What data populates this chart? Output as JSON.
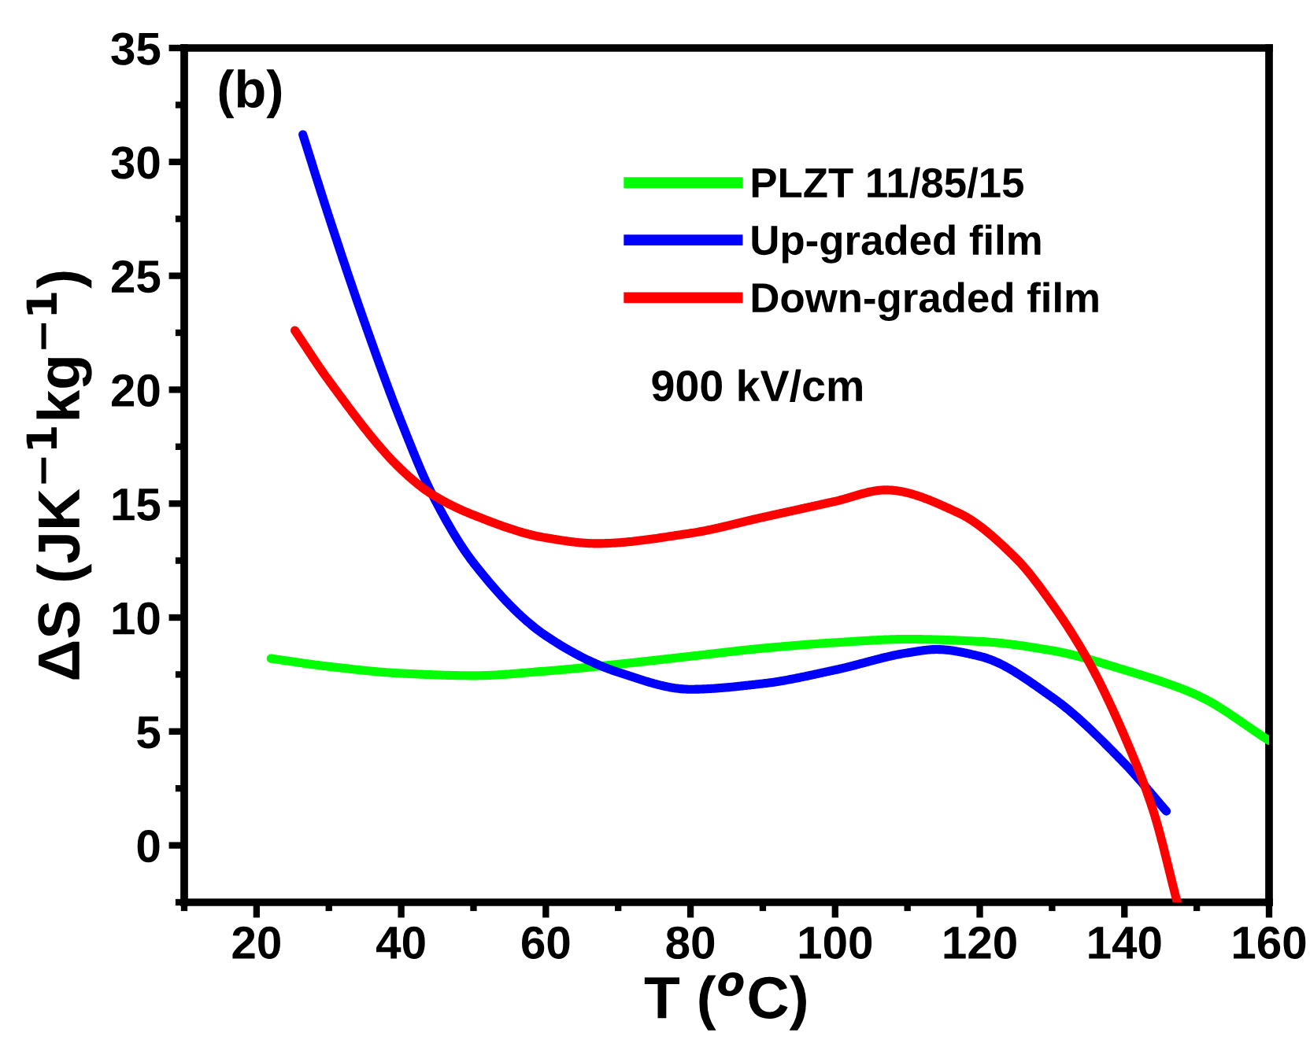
{
  "chart_data": {
    "type": "line",
    "xlabel": "T ($^{o}$C)",
    "ylabel": "ΔS (JK$^{−1}$kg$^{−1}$)",
    "xlim": [
      10,
      160
    ],
    "ylim": [
      -2.5,
      35
    ],
    "xticks": [
      {
        "value": 10,
        "label": null
      },
      20,
      {
        "value": 30,
        "label": null
      },
      40,
      {
        "value": 50,
        "label": null
      },
      60,
      {
        "value": 70,
        "label": null
      },
      80,
      {
        "value": 90,
        "label": null
      },
      100,
      {
        "value": 110,
        "label": null
      },
      120,
      {
        "value": 130,
        "label": null
      },
      140,
      {
        "value": 150,
        "label": null
      },
      160
    ],
    "yticks": [
      {
        "value": -2.5,
        "label": null
      },
      0,
      {
        "value": 2.5,
        "label": null
      },
      5,
      {
        "value": 7.5,
        "label": null
      },
      10,
      {
        "value": 12.5,
        "label": null
      },
      15,
      {
        "value": 17.5,
        "label": null
      },
      20,
      {
        "value": 22.5,
        "label": null
      },
      25,
      {
        "value": 27.5,
        "label": null
      },
      30,
      {
        "value": 32.5,
        "label": null
      },
      35
    ],
    "grid": false,
    "legend": "top right",
    "marker": "none",
    "line_style": "solid",
    "annotations": [
      "(b)",
      "900 kV/cm"
    ],
    "series": [
      {
        "name": "PLZT 11/85/15",
        "color": "#00ff00",
        "x": [
          22,
          30,
          40,
          50,
          60,
          70,
          80,
          90,
          100,
          110,
          120,
          130,
          140,
          150,
          160
        ],
        "values": [
          8.2,
          7.85,
          7.55,
          7.45,
          7.65,
          7.95,
          8.3,
          8.65,
          8.9,
          9.05,
          8.95,
          8.55,
          7.7,
          6.6,
          4.6
        ]
      },
      {
        "name": "Up-graded film",
        "color": "#0000ff",
        "x": [
          26.4,
          30,
          35,
          40,
          44.3,
          50,
          60,
          70,
          80,
          90,
          100,
          110,
          114,
          120,
          130,
          140,
          145.8
        ],
        "values": [
          31.2,
          27.6,
          22.9,
          18.6,
          15.4,
          12.4,
          9.2,
          7.6,
          6.85,
          7.1,
          7.7,
          8.45,
          8.6,
          8.3,
          6.5,
          3.6,
          1.5
        ]
      },
      {
        "name": "Down-graded film",
        "color": "#ff0000",
        "x": [
          25.3,
          30,
          40,
          44.3,
          50,
          60,
          67,
          80,
          90,
          100,
          107,
          117,
          125,
          130,
          135,
          140,
          144,
          147.3
        ],
        "values": [
          22.6,
          20.4,
          16.5,
          15.4,
          14.5,
          13.5,
          13.25,
          13.7,
          14.4,
          15.1,
          15.6,
          14.6,
          12.6,
          10.6,
          8.1,
          4.8,
          1.5,
          -2.5
        ]
      }
    ]
  }
}
